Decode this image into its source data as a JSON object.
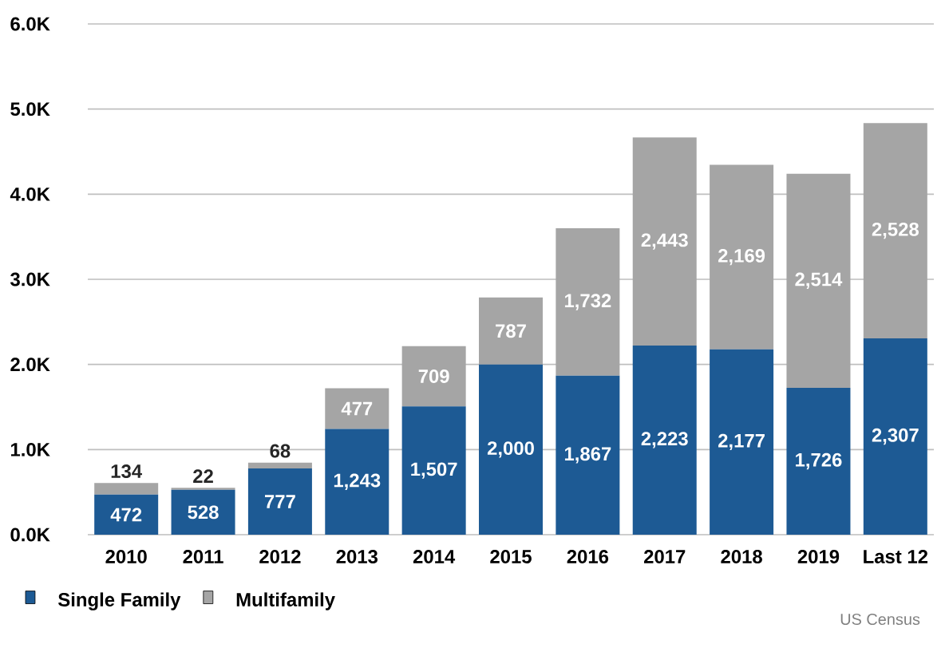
{
  "chart_data": {
    "type": "bar",
    "stacked": true,
    "categories": [
      "2010",
      "2011",
      "2012",
      "2013",
      "2014",
      "2015",
      "2016",
      "2017",
      "2018",
      "2019",
      "Last 12"
    ],
    "series": [
      {
        "name": "Single Family",
        "color": "#1d5a94",
        "values": [
          472,
          528,
          777,
          1243,
          1507,
          2000,
          1867,
          2223,
          2177,
          1726,
          2307
        ],
        "value_labels": [
          "472",
          "528",
          "777",
          "1,243",
          "1,507",
          "2,000",
          "1,867",
          "2,223",
          "2,177",
          "1,726",
          "2,307"
        ]
      },
      {
        "name": "Multifamily",
        "color": "#a5a5a5",
        "values": [
          134,
          22,
          68,
          477,
          709,
          787,
          1732,
          2443,
          2169,
          2514,
          2528
        ],
        "value_labels": [
          "134",
          "22",
          "68",
          "477",
          "709",
          "787",
          "1,732",
          "2,443",
          "2,169",
          "2,514",
          "2,528"
        ]
      }
    ],
    "ylim": [
      0,
      6000
    ],
    "yticks": [
      {
        "value": 0,
        "label": "0.0K"
      },
      {
        "value": 1000,
        "label": "1.0K"
      },
      {
        "value": 2000,
        "label": "2.0K"
      },
      {
        "value": 3000,
        "label": "3.0K"
      },
      {
        "value": 4000,
        "label": "4.0K"
      },
      {
        "value": 5000,
        "label": "5.0K"
      },
      {
        "value": 6000,
        "label": "6.0K"
      }
    ],
    "grid": "y",
    "legend": "bottom left",
    "annotations": [
      "US Census"
    ]
  }
}
